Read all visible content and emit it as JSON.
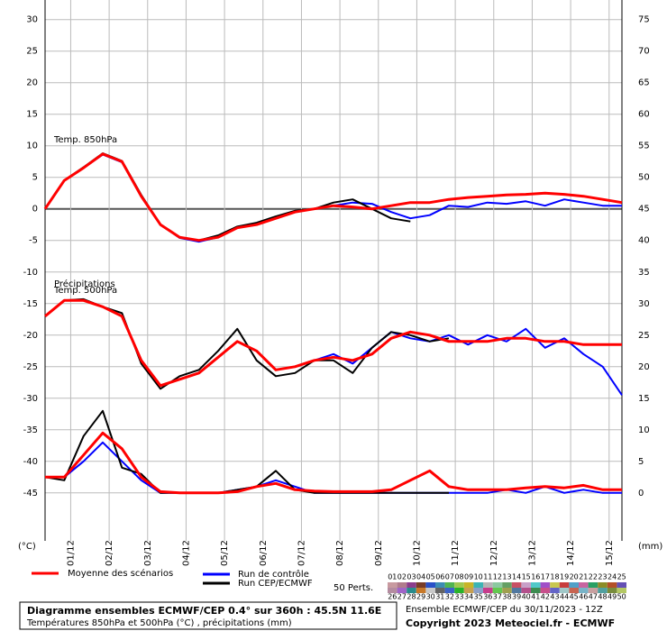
{
  "chart_data": {
    "type": "line",
    "annotations": [
      "Temp. 850hPa",
      "Précipitations",
      "Temp. 500hPa"
    ],
    "ylabel": "(°C)",
    "y2label": "(mm)",
    "x": [
      0,
      12,
      24,
      36,
      48,
      60,
      72,
      84,
      96,
      108,
      120,
      132,
      144,
      156,
      168,
      180,
      192,
      204,
      216,
      228,
      240,
      252,
      264,
      276,
      288,
      300,
      312,
      324,
      336,
      348,
      360
    ],
    "xlim": [
      0,
      360
    ],
    "xticks": [
      {
        "value": 16,
        "label": "01/12"
      },
      {
        "value": 40,
        "label": "02/12"
      },
      {
        "value": 64,
        "label": "03/12"
      },
      {
        "value": 88,
        "label": "04/12"
      },
      {
        "value": 112,
        "label": "05/12"
      },
      {
        "value": 136,
        "label": "06/12"
      },
      {
        "value": 160,
        "label": "07/12"
      },
      {
        "value": 184,
        "label": "08/12"
      },
      {
        "value": 208,
        "label": "09/12"
      },
      {
        "value": 232,
        "label": "10/12"
      },
      {
        "value": 256,
        "label": "11/12"
      },
      {
        "value": 280,
        "label": "12/12"
      },
      {
        "value": 304,
        "label": "13/12"
      },
      {
        "value": 328,
        "label": "14/12"
      },
      {
        "value": 352,
        "label": "15/12"
      }
    ],
    "ylim": [
      -52.6,
      33.1
    ],
    "yticks": [
      -45,
      -40,
      -35,
      -30,
      -25,
      -20,
      -15,
      -10,
      -5,
      0,
      5,
      10,
      15,
      20,
      25,
      30
    ],
    "y2lim": [
      -7.6,
      78.1
    ],
    "y2ticks": [
      0,
      5,
      10,
      15,
      20,
      25,
      30,
      35,
      40,
      45,
      50,
      55,
      60,
      65,
      70,
      75
    ],
    "grid": true,
    "legend": [
      {
        "name": "Moyenne des scénarios",
        "color": "#ff0000"
      },
      {
        "name": "Run de contrôle",
        "color": "#0000ff"
      },
      {
        "name": "Run CEP/ECMWF",
        "color": "#000000"
      }
    ],
    "perts_label": "50 Perts.",
    "perts": [
      "01",
      "02",
      "03",
      "04",
      "05",
      "06",
      "07",
      "08",
      "09",
      "10",
      "11",
      "12",
      "13",
      "14",
      "15",
      "16",
      "17",
      "18",
      "19",
      "20",
      "21",
      "22",
      "23",
      "24",
      "25",
      "26",
      "27",
      "28",
      "29",
      "30",
      "31",
      "32",
      "33",
      "34",
      "35",
      "36",
      "37",
      "38",
      "39",
      "40",
      "41",
      "42",
      "43",
      "44",
      "45",
      "46",
      "47",
      "48",
      "49",
      "50"
    ],
    "pert_colors": [
      "#c89aa0",
      "#b07c8c",
      "#8c3c8c",
      "#783c28",
      "#2850c8",
      "#3c8cb4",
      "#50b450",
      "#a0c850",
      "#c8b428",
      "#3cb4b4",
      "#b4b4b4",
      "#8cc8a0",
      "#64a064",
      "#c85064",
      "#c8a0c8",
      "#50c8c8",
      "#a050c8",
      "#c8c850",
      "#c83c3c",
      "#50a0c8",
      "#c864a0",
      "#28a064",
      "#8c8c28",
      "#b45028",
      "#6450b4",
      "#b48ca0",
      "#a064c8",
      "#288c8c",
      "#c87828",
      "#c8c8c8",
      "#646464",
      "#3c64c8",
      "#28b428",
      "#c8a050",
      "#8ca0c8",
      "#c83c8c",
      "#64c850",
      "#a0a050",
      "#5078a0",
      "#b4508c",
      "#3c8c50",
      "#c8508c",
      "#6464c8",
      "#a0c8c8",
      "#c86450",
      "#78b4c8",
      "#c8a0a0",
      "#50a0a0",
      "#788c3c",
      "#b4c864"
    ],
    "series": [
      {
        "color": "#0000ff",
        "values": [
          0,
          4.5,
          6.5,
          8.6,
          7.4,
          2,
          -2.5,
          -4.6,
          -5.2,
          -4.5,
          -3,
          -2.5,
          -1.5,
          -0.5,
          0,
          0.5,
          1,
          0.8,
          -0.5,
          -1.5,
          -1,
          0.5,
          0.3,
          1,
          0.8,
          1.2,
          0.5,
          1.5,
          1,
          0.5,
          0.5
        ]
      },
      {
        "color": "#000000",
        "values": [
          0,
          4.5,
          6.6,
          8.8,
          7.6,
          2.2,
          -2.5,
          -4.5,
          -5,
          -4.2,
          -2.8,
          -2.2,
          -1.2,
          -0.3,
          0,
          1,
          1.5,
          0,
          -1.5,
          -2,
          null,
          null,
          null,
          null,
          null,
          null,
          null,
          null,
          null,
          null,
          null
        ]
      },
      {
        "color": "#ff0000",
        "values": [
          0,
          4.5,
          6.5,
          8.7,
          7.5,
          2,
          -2.5,
          -4.5,
          -5,
          -4.5,
          -3,
          -2.5,
          -1.5,
          -0.5,
          0,
          0.5,
          0.3,
          0,
          0.5,
          1,
          1,
          1.5,
          1.8,
          2,
          2.2,
          2.3,
          2.5,
          2.3,
          2,
          1.5,
          1
        ]
      },
      {
        "color": "#0000ff",
        "values": [
          -17,
          -14.5,
          -14.5,
          -15.5,
          -17,
          -24,
          -28,
          -27,
          -26,
          -23.5,
          -21,
          -22.5,
          -25.5,
          -25,
          -24,
          -23,
          -24.5,
          -22,
          -19.5,
          -20.5,
          -21,
          -20,
          -21.5,
          -20,
          -21,
          -19,
          -22,
          -20.5,
          -23,
          -25,
          -29.5
        ]
      },
      {
        "color": "#000000",
        "values": [
          -17,
          -14.5,
          -14.3,
          -15.5,
          -16.5,
          -24.5,
          -28.5,
          -26.5,
          -25.5,
          -22.5,
          -19,
          -24,
          -26.5,
          -26,
          -24,
          -24,
          -26,
          -22,
          -19.5,
          -20,
          -21,
          -20.5,
          null,
          null,
          null,
          null,
          null,
          null,
          null,
          null,
          null
        ]
      },
      {
        "color": "#ff0000",
        "values": [
          -17,
          -14.5,
          -14.5,
          -15.5,
          -17,
          -24,
          -28,
          -27,
          -26,
          -23.5,
          -21,
          -22.5,
          -25.5,
          -25,
          -24,
          -23.5,
          -24,
          -23,
          -20.5,
          -19.5,
          -20,
          -21,
          -21,
          -21,
          -20.5,
          -20.5,
          -21,
          -21,
          -21.5,
          -21.5,
          -21.5
        ]
      },
      {
        "axis": "y2",
        "color": "#0000ff",
        "values": [
          2.5,
          2.5,
          5,
          8,
          5,
          2,
          0,
          0,
          0,
          0,
          0.5,
          1,
          2,
          1,
          0,
          0,
          0,
          0,
          0,
          0,
          0,
          0,
          0,
          0,
          0.5,
          0,
          1,
          0,
          0.5,
          0,
          0
        ]
      },
      {
        "axis": "y2",
        "color": "#000000",
        "values": [
          2.5,
          2,
          9,
          13,
          4,
          3,
          0,
          0,
          0,
          0,
          0.5,
          1,
          3.5,
          0.5,
          0,
          0,
          0,
          0,
          0,
          0,
          0,
          0,
          null,
          null,
          null,
          null,
          null,
          null,
          null,
          null,
          null
        ]
      },
      {
        "axis": "y2",
        "color": "#ff0000",
        "values": [
          2.5,
          2.5,
          6,
          9.5,
          7,
          2.5,
          0.2,
          0,
          0,
          0,
          0.2,
          1,
          1.5,
          0.5,
          0.3,
          0.2,
          0.2,
          0.2,
          0.5,
          2,
          3.5,
          1,
          0.5,
          0.5,
          0.5,
          0.8,
          1,
          0.8,
          1.2,
          0.5,
          0.5
        ]
      }
    ],
    "footer": {
      "title": "Diagramme ensembles ECMWF/CEP 0.4° sur 360h : 45.5N 11.6E",
      "subtitle": "Températures 850hPa et 500hPa (°C) , précipitations (mm)",
      "run": "Ensemble ECMWF/CEP du 30/11/2023 - 12Z",
      "copyright": "Copyright 2023 Meteociel.fr - ECMWF"
    }
  }
}
